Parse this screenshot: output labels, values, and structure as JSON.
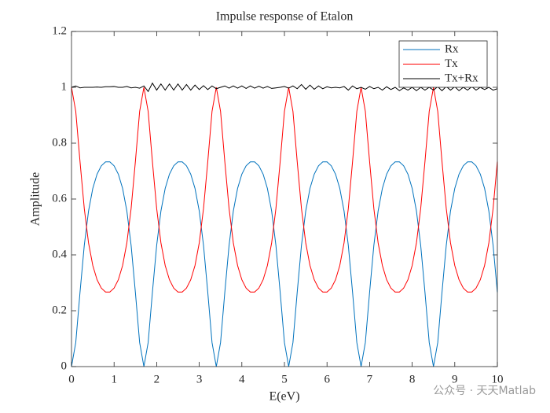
{
  "chart_data": {
    "type": "line",
    "title": "Impulse response of Etalon",
    "xlabel": "E(eV)",
    "ylabel": "Amplitude",
    "watermark": "公众号 · 天天Matlab",
    "x": [
      0,
      0.1,
      0.2,
      0.3,
      0.4,
      0.5,
      0.6,
      0.7,
      0.8,
      0.9,
      1,
      1.1,
      1.2,
      1.3,
      1.4,
      1.5,
      1.6,
      1.7,
      1.8,
      1.9,
      2,
      2.1,
      2.2,
      2.3,
      2.4,
      2.5,
      2.6,
      2.7,
      2.8,
      2.9,
      3,
      3.1,
      3.2,
      3.3,
      3.4,
      3.5,
      3.6,
      3.7,
      3.8,
      3.9,
      4,
      4.1,
      4.2,
      4.3,
      4.4,
      4.5,
      4.6,
      4.7,
      4.8,
      4.9,
      5,
      5.1,
      5.2,
      5.3,
      5.4,
      5.5,
      5.6,
      5.7,
      5.8,
      5.9,
      6,
      6.1,
      6.2,
      6.3,
      6.4,
      6.5,
      6.6,
      6.7,
      6.8,
      6.9,
      7,
      7.1,
      7.2,
      7.3,
      7.4,
      7.5,
      7.6,
      7.7,
      7.8,
      7.9,
      8,
      8.1,
      8.2,
      8.3,
      8.4,
      8.5,
      8.6,
      8.7,
      8.8,
      8.9,
      9,
      9.1,
      9.2,
      9.3,
      9.4,
      9.5,
      9.6,
      9.7,
      9.8,
      9.9,
      10
    ],
    "series": [
      {
        "name": "Rx",
        "color": "#0072bd",
        "values": [
          0,
          0.086,
          0.266,
          0.434,
          0.557,
          0.638,
          0.689,
          0.719,
          0.733,
          0.733,
          0.719,
          0.689,
          0.638,
          0.557,
          0.434,
          0.266,
          0.086,
          0,
          0.086,
          0.266,
          0.434,
          0.557,
          0.638,
          0.689,
          0.719,
          0.733,
          0.733,
          0.719,
          0.689,
          0.638,
          0.557,
          0.434,
          0.266,
          0.086,
          0,
          0.086,
          0.266,
          0.434,
          0.557,
          0.638,
          0.689,
          0.719,
          0.733,
          0.733,
          0.719,
          0.689,
          0.638,
          0.557,
          0.434,
          0.266,
          0.086,
          0,
          0.086,
          0.266,
          0.434,
          0.557,
          0.638,
          0.689,
          0.719,
          0.733,
          0.733,
          0.719,
          0.689,
          0.638,
          0.557,
          0.434,
          0.266,
          0.086,
          0,
          0.086,
          0.266,
          0.434,
          0.557,
          0.638,
          0.689,
          0.719,
          0.733,
          0.733,
          0.719,
          0.689,
          0.638,
          0.557,
          0.434,
          0.266,
          0.086,
          0,
          0.086,
          0.266,
          0.434,
          0.557,
          0.638,
          0.689,
          0.719,
          0.733,
          0.733,
          0.719,
          0.689,
          0.638,
          0.557,
          0.434,
          0.266
        ]
      },
      {
        "name": "Tx",
        "color": "#ff0000",
        "values": [
          1,
          0.914,
          0.734,
          0.566,
          0.443,
          0.362,
          0.311,
          0.281,
          0.267,
          0.267,
          0.281,
          0.311,
          0.362,
          0.443,
          0.566,
          0.734,
          0.914,
          1,
          0.914,
          0.734,
          0.566,
          0.443,
          0.362,
          0.311,
          0.281,
          0.267,
          0.267,
          0.281,
          0.311,
          0.362,
          0.443,
          0.566,
          0.734,
          0.914,
          1,
          0.914,
          0.734,
          0.566,
          0.443,
          0.362,
          0.311,
          0.281,
          0.267,
          0.267,
          0.281,
          0.311,
          0.362,
          0.443,
          0.566,
          0.734,
          0.914,
          1,
          0.914,
          0.734,
          0.566,
          0.443,
          0.362,
          0.311,
          0.281,
          0.267,
          0.267,
          0.281,
          0.311,
          0.362,
          0.443,
          0.566,
          0.734,
          0.914,
          1,
          0.914,
          0.734,
          0.566,
          0.443,
          0.362,
          0.311,
          0.281,
          0.267,
          0.267,
          0.281,
          0.311,
          0.362,
          0.443,
          0.566,
          0.734,
          0.914,
          1,
          0.914,
          0.734,
          0.566,
          0.443,
          0.362,
          0.311,
          0.281,
          0.267,
          0.267,
          0.281,
          0.311,
          0.362,
          0.443,
          0.566,
          0.734
        ]
      },
      {
        "name": "Tx+Rx",
        "color": "#000000",
        "values": [
          1.0,
          1.005,
          0.998,
          1.0,
          1.0,
          1.0,
          1.001,
          1.0,
          1.002,
          1.002,
          1.003,
          1.0,
          1.0,
          1.003,
          0.998,
          1.0,
          0.997,
          1.005,
          0.985,
          1.015,
          0.99,
          1.012,
          0.99,
          1.012,
          0.99,
          1.012,
          0.99,
          1.01,
          0.99,
          1.008,
          0.992,
          1.006,
          0.992,
          1.005,
          0.995,
          1.0,
          1.005,
          0.997,
          1.005,
          0.997,
          1.005,
          0.996,
          1.005,
          0.997,
          1.004,
          0.997,
          1.003,
          0.996,
          0.998,
          1.0,
          1.003,
          0.997,
          1.005,
          0.995,
          1.01,
          0.993,
          1.008,
          0.993,
          1.005,
          0.995,
          1.002,
          0.998,
          1.0,
          0.998,
          1.003,
          0.99,
          1.005,
          0.995,
          1.0,
          0.993,
          1.003,
          0.995,
          1.0,
          0.99,
          1.002,
          0.992,
          1.0,
          0.988,
          0.998,
          0.99,
          1.0,
          0.988,
          1.0,
          0.99,
          1.0,
          0.99,
          1.002,
          0.988,
          1.003,
          0.99,
          1.002,
          0.988,
          1.0,
          0.99,
          1.002,
          0.99,
          1.0,
          0.992,
          1.0,
          0.99,
          0.995
        ]
      }
    ],
    "xlim": [
      0,
      10
    ],
    "xticks": [
      0,
      1,
      2,
      3,
      4,
      5,
      6,
      7,
      8,
      9,
      10
    ],
    "ylim": [
      0,
      1.2
    ],
    "yticks": [
      0,
      0.2,
      0.4,
      0.6,
      0.8,
      1,
      1.2
    ],
    "legend": "top-right",
    "grid": false
  }
}
